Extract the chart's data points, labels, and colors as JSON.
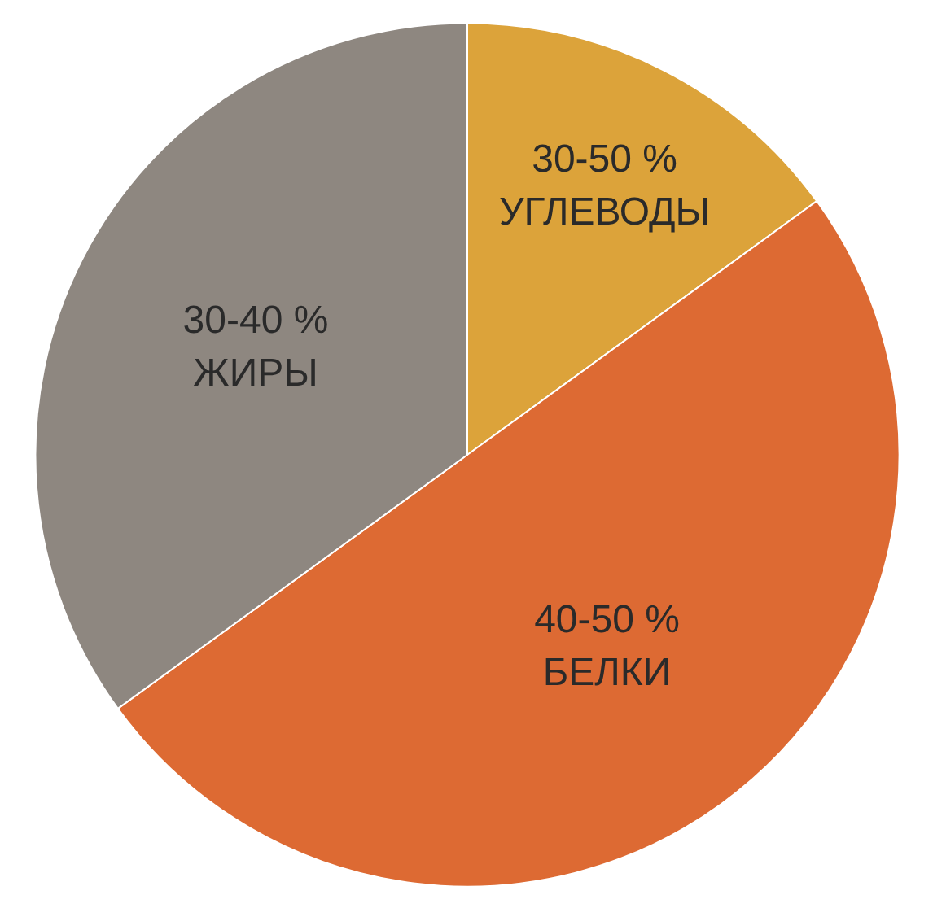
{
  "chart_data": {
    "type": "pie",
    "categories": [
      "30-50 %\nУГЛЕВОДЫ",
      "40-50 %\nБЕЛКИ",
      "30-40 %\nЖИРЫ"
    ],
    "values": [
      15,
      50,
      35
    ],
    "colors": [
      "#dca33a",
      "#dd6a33",
      "#8e8780"
    ],
    "legend": false
  }
}
